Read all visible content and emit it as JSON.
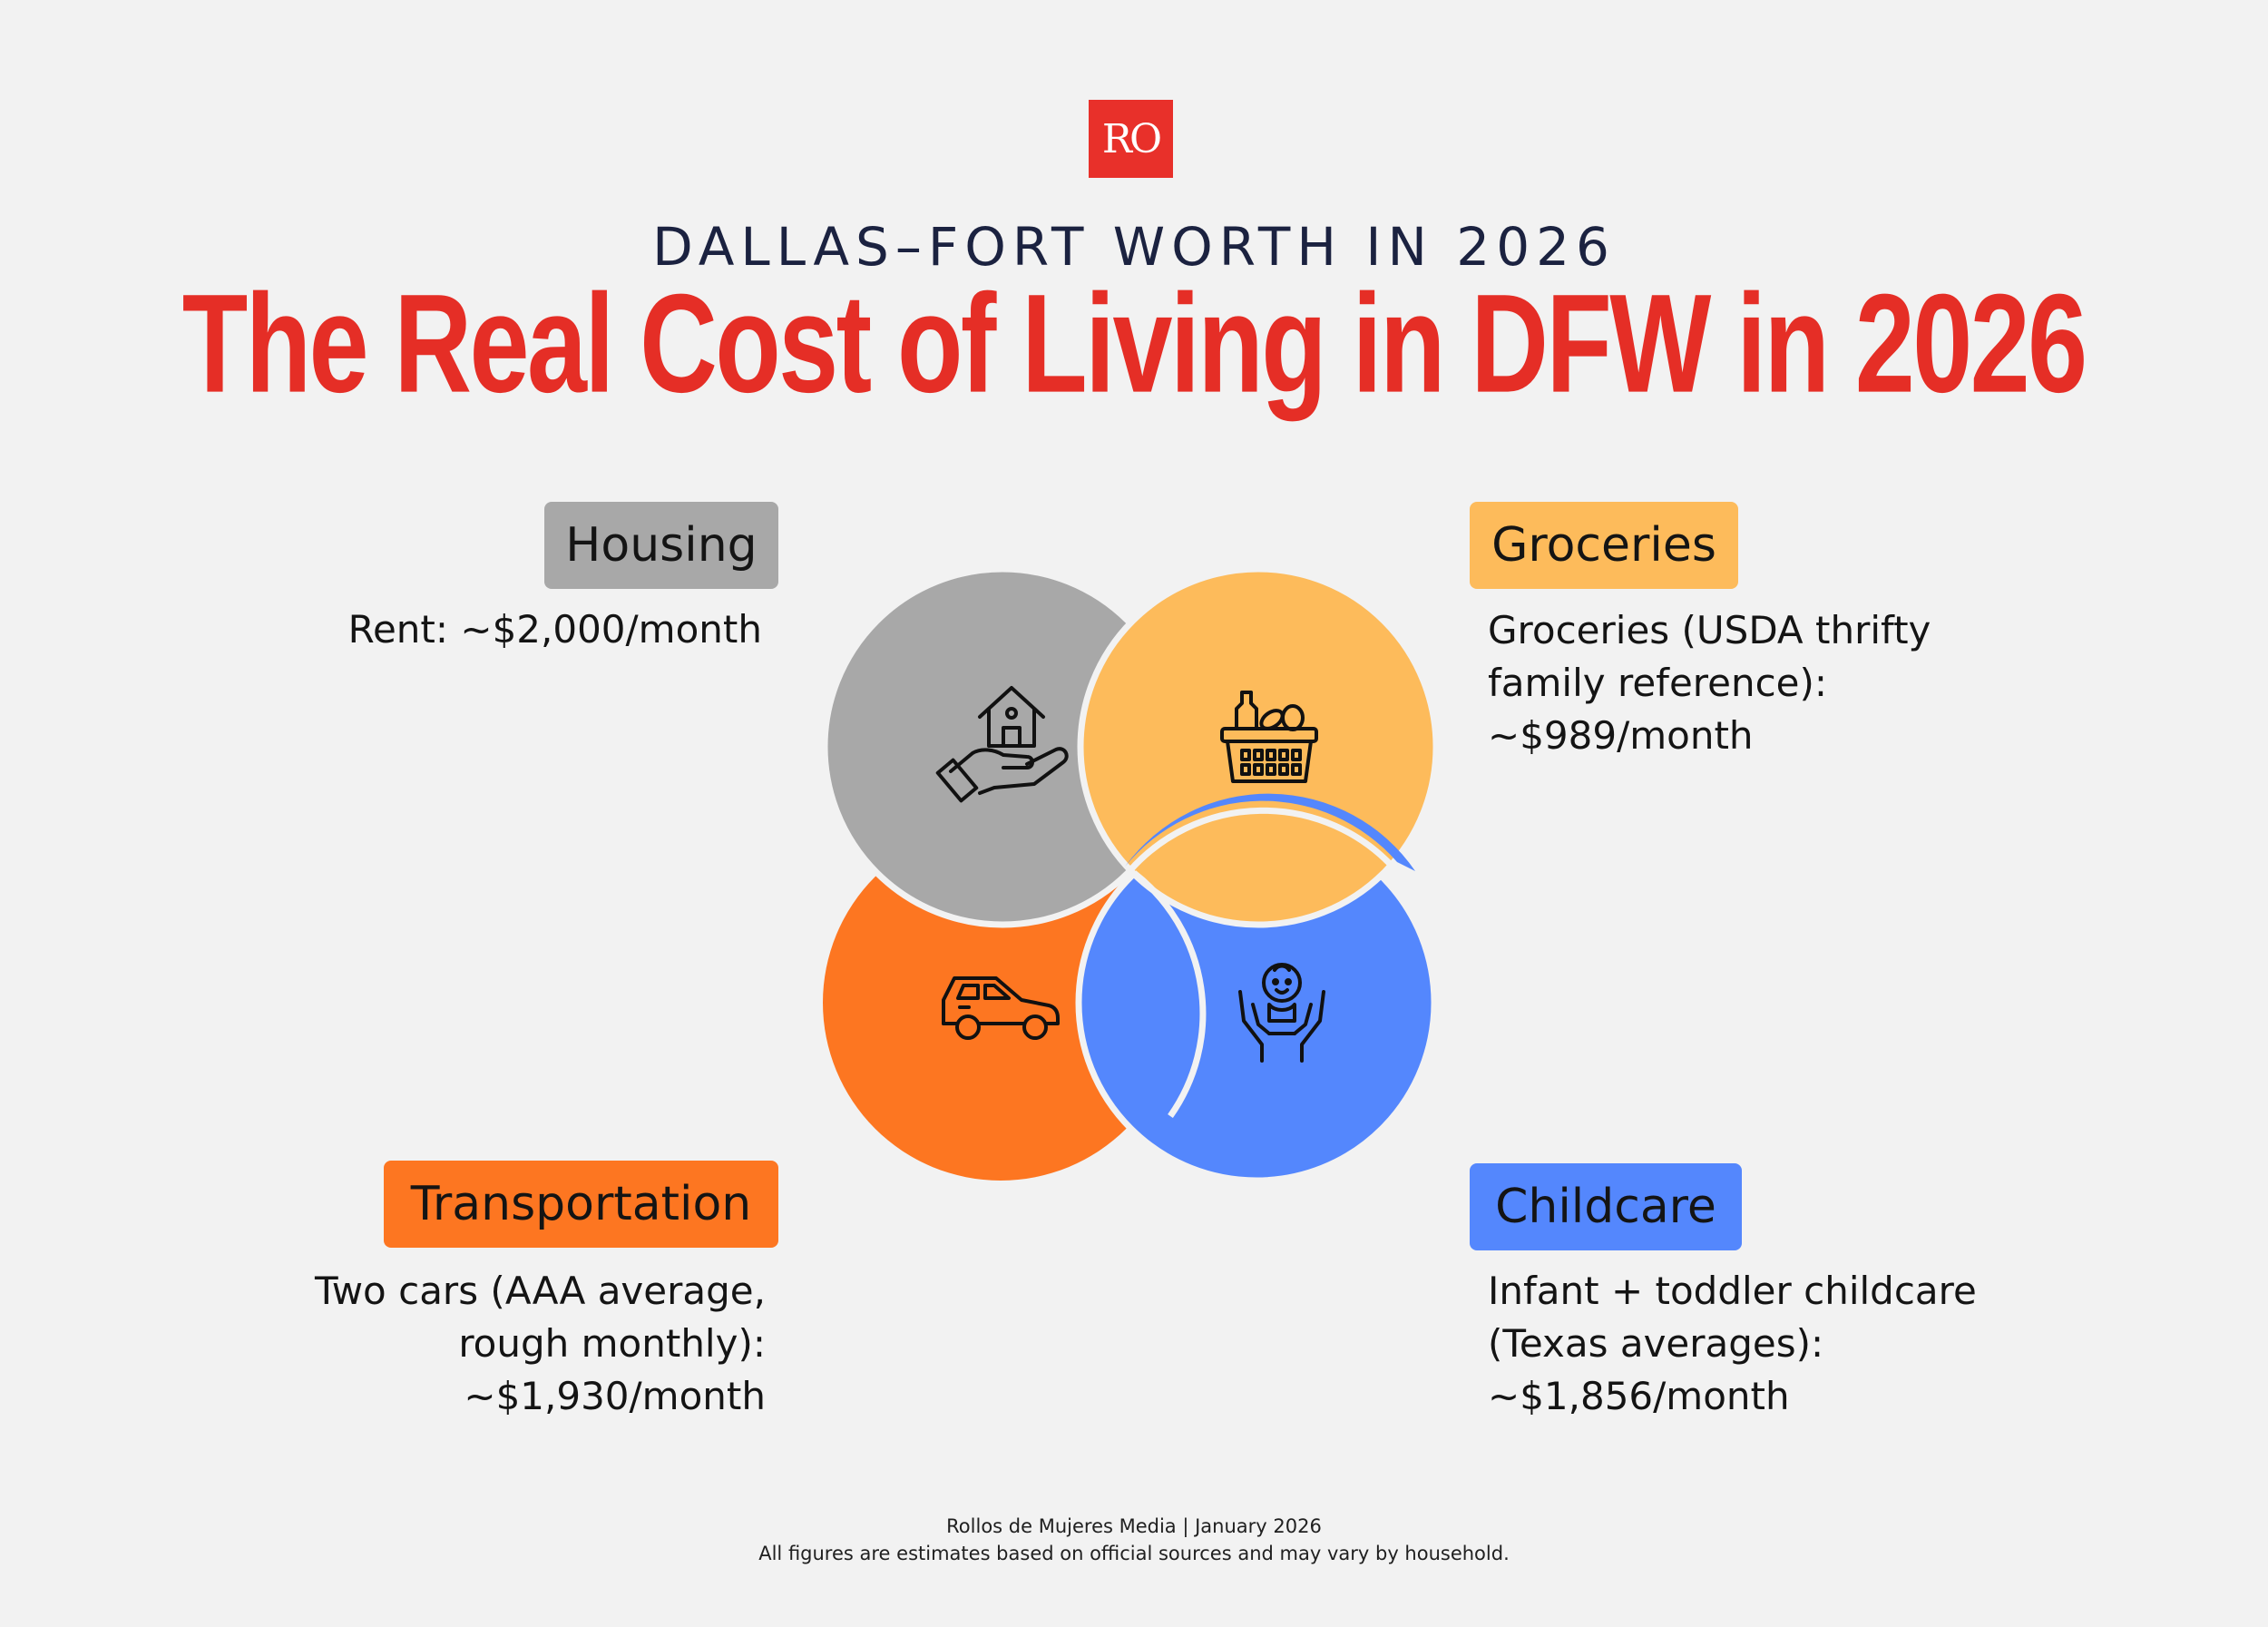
{
  "logo": {
    "text": "RO"
  },
  "header": {
    "eyebrow": "DALLAS–FORT WORTH IN 2026",
    "title": "The Real Cost of Living in DFW in 2026"
  },
  "categories": {
    "housing": {
      "label": "Housing",
      "lines": [
        "Rent: ~$2,000/month"
      ],
      "color": "#a8a8a8",
      "icon": "house-in-hand-icon"
    },
    "groceries": {
      "label": "Groceries",
      "lines": [
        "Groceries (USDA thrifty",
        "family reference):",
        "~$989/month"
      ],
      "color": "#fdbb5b",
      "icon": "grocery-basket-icon"
    },
    "transportation": {
      "label": "Transportation",
      "lines": [
        "Two cars (AAA average,",
        "rough monthly):",
        "~$1,930/month"
      ],
      "color": "#fd7621",
      "icon": "car-icon"
    },
    "childcare": {
      "label": "Childcare",
      "lines": [
        "Infant + toddler childcare",
        "(Texas averages):",
        "~$1,856/month"
      ],
      "color": "#5487fd",
      "icon": "baby-in-hands-icon"
    }
  },
  "footer": {
    "line1": "Rollos de Mujeres Media | January 2026",
    "line2": "All figures are estimates based on official sources and may vary by household."
  }
}
